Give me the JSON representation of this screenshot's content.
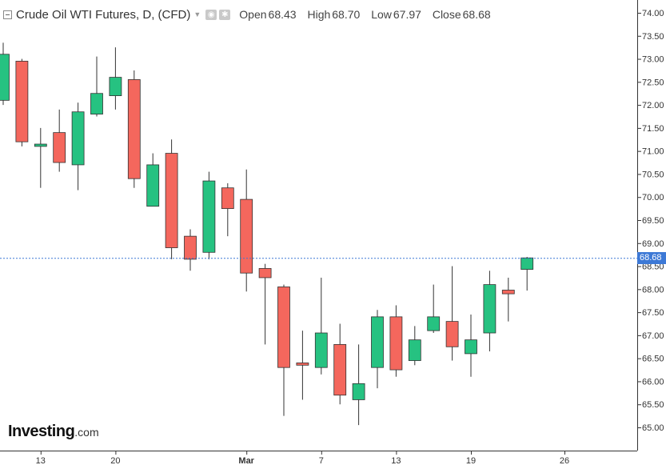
{
  "header": {
    "title": "Crude Oil WTI Futures, D, (CFD)",
    "open_label": "Open",
    "open_value": "68.43",
    "high_label": "High",
    "high_value": "68.70",
    "low_label": "Low",
    "low_value": "67.97",
    "close_label": "Close",
    "close_value": "68.68"
  },
  "logo": {
    "main": "Investing",
    "suffix": ".com"
  },
  "current_price": "68.68",
  "colors": {
    "up": "#26c281",
    "down": "#f4675d",
    "price_line": "#3d79d6",
    "axis": "#333333"
  },
  "chart_data": {
    "type": "candlestick",
    "title": "Crude Oil WTI Futures, D, (CFD)",
    "ylim": [
      64.6,
      74.2
    ],
    "y_ticks": [
      "74.00",
      "73.50",
      "73.00",
      "72.50",
      "72.00",
      "71.50",
      "71.00",
      "70.50",
      "70.00",
      "69.50",
      "69.00",
      "68.50",
      "68.00",
      "67.50",
      "67.00",
      "66.50",
      "66.00",
      "65.50",
      "65.00"
    ],
    "x_ticks": [
      {
        "label": "13",
        "index": 2
      },
      {
        "label": "20",
        "index": 6
      },
      {
        "label": "Mar",
        "index": 13
      },
      {
        "label": "7",
        "index": 17
      },
      {
        "label": "13",
        "index": 21
      },
      {
        "label": "19",
        "index": 25
      },
      {
        "label": "26",
        "index": 30
      }
    ],
    "candles": [
      {
        "o": 72.1,
        "h": 73.35,
        "l": 72.0,
        "c": 73.1
      },
      {
        "o": 72.95,
        "h": 73.0,
        "l": 71.1,
        "c": 71.2
      },
      {
        "o": 71.1,
        "h": 71.5,
        "l": 70.2,
        "c": 71.15
      },
      {
        "o": 71.4,
        "h": 71.9,
        "l": 70.55,
        "c": 70.75
      },
      {
        "o": 70.7,
        "h": 72.05,
        "l": 70.15,
        "c": 71.85
      },
      {
        "o": 71.8,
        "h": 73.05,
        "l": 71.75,
        "c": 72.25
      },
      {
        "o": 72.2,
        "h": 73.25,
        "l": 71.9,
        "c": 72.6
      },
      {
        "o": 72.55,
        "h": 72.75,
        "l": 70.2,
        "c": 70.4
      },
      {
        "o": 69.8,
        "h": 70.95,
        "l": 69.8,
        "c": 70.7
      },
      {
        "o": 70.95,
        "h": 71.25,
        "l": 68.65,
        "c": 68.9
      },
      {
        "o": 69.15,
        "h": 69.3,
        "l": 68.4,
        "c": 68.65
      },
      {
        "o": 68.8,
        "h": 70.55,
        "l": 68.65,
        "c": 70.35
      },
      {
        "o": 70.2,
        "h": 70.3,
        "l": 69.15,
        "c": 69.75
      },
      {
        "o": 69.95,
        "h": 70.6,
        "l": 67.95,
        "c": 68.35
      },
      {
        "o": 68.45,
        "h": 68.55,
        "l": 66.8,
        "c": 68.25
      },
      {
        "o": 68.05,
        "h": 68.1,
        "l": 65.25,
        "c": 66.3
      },
      {
        "o": 66.4,
        "h": 67.1,
        "l": 65.6,
        "c": 66.35
      },
      {
        "o": 66.3,
        "h": 68.25,
        "l": 66.15,
        "c": 67.05
      },
      {
        "o": 66.8,
        "h": 67.25,
        "l": 65.5,
        "c": 65.7
      },
      {
        "o": 65.6,
        "h": 66.8,
        "l": 65.05,
        "c": 65.95
      },
      {
        "o": 66.3,
        "h": 67.55,
        "l": 65.85,
        "c": 67.4
      },
      {
        "o": 67.4,
        "h": 67.65,
        "l": 66.1,
        "c": 66.25
      },
      {
        "o": 66.45,
        "h": 67.2,
        "l": 66.35,
        "c": 66.9
      },
      {
        "o": 67.1,
        "h": 68.1,
        "l": 67.05,
        "c": 67.4
      },
      {
        "o": 67.3,
        "h": 68.5,
        "l": 66.45,
        "c": 66.75
      },
      {
        "o": 66.6,
        "h": 67.45,
        "l": 66.1,
        "c": 66.9
      },
      {
        "o": 67.05,
        "h": 68.4,
        "l": 66.65,
        "c": 68.1
      },
      {
        "o": 67.98,
        "h": 68.25,
        "l": 67.3,
        "c": 67.9
      },
      {
        "o": 68.43,
        "h": 68.7,
        "l": 67.97,
        "c": 68.68
      }
    ]
  }
}
